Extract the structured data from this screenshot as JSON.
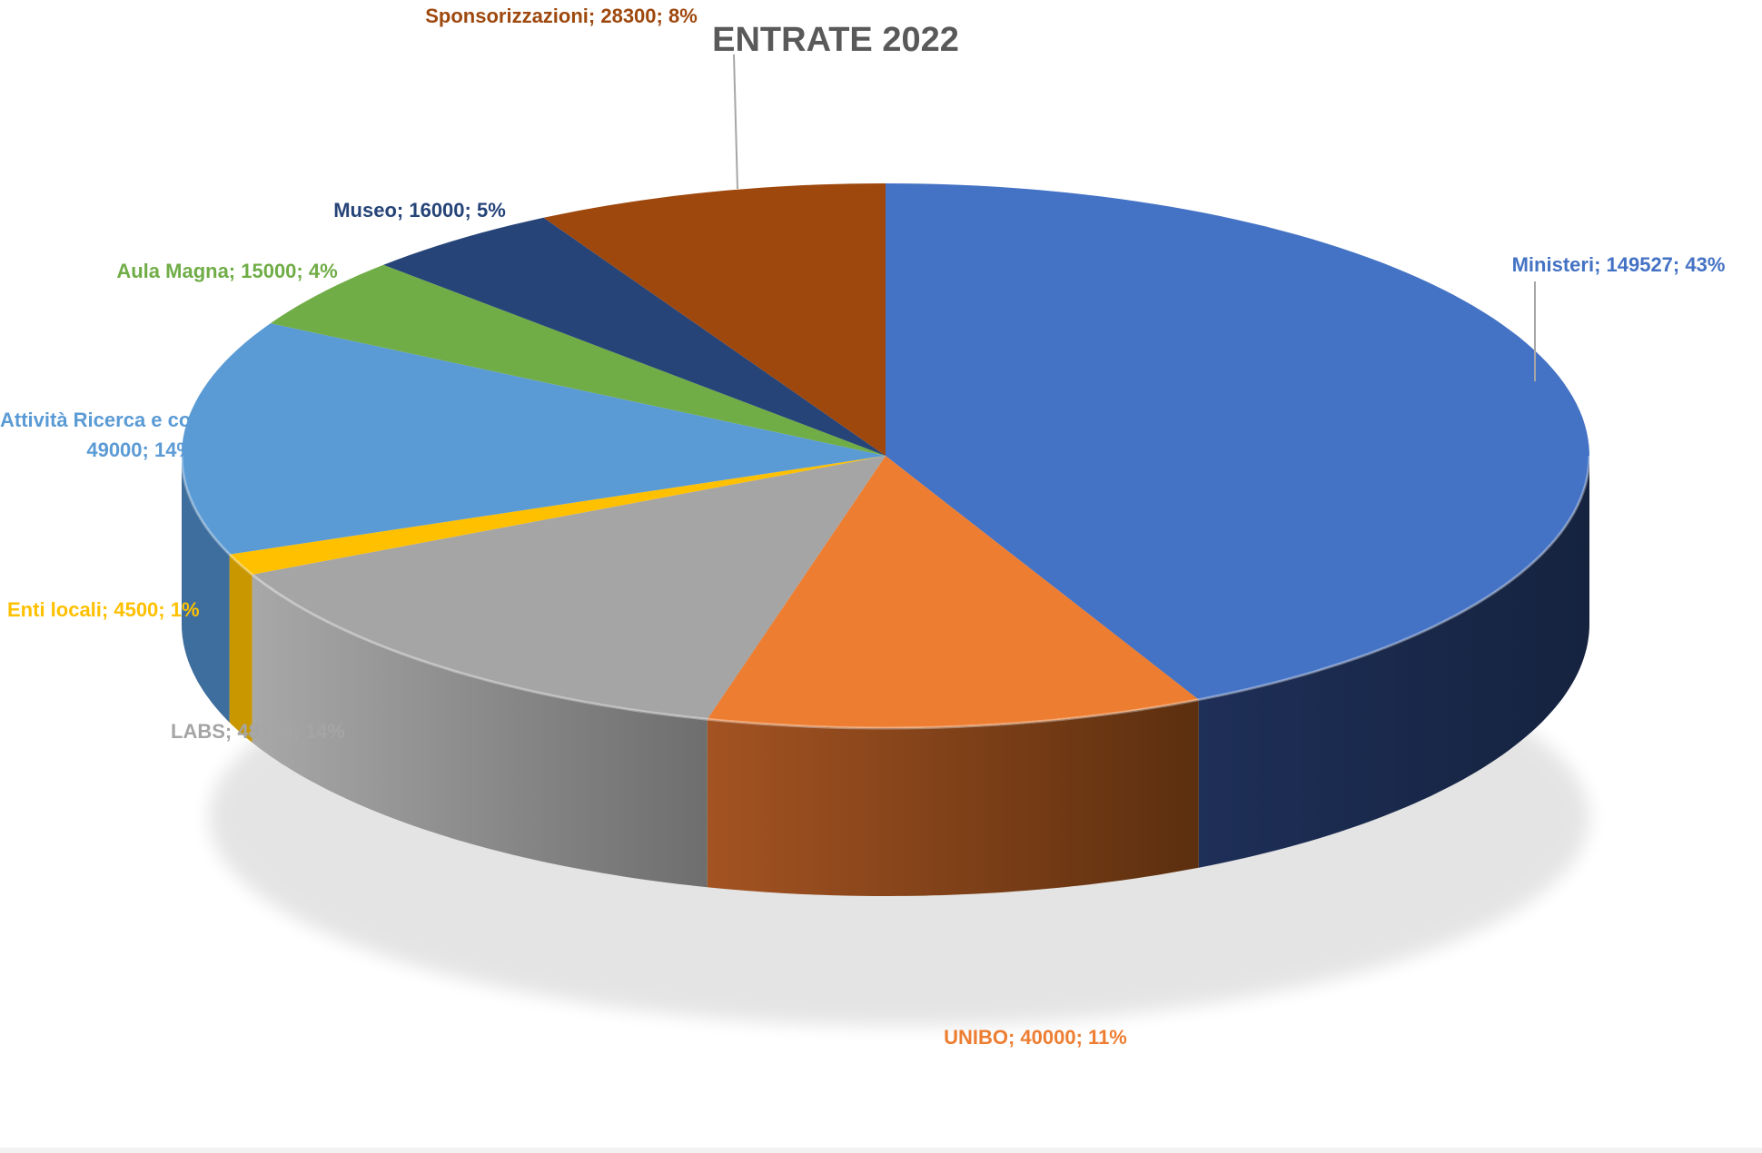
{
  "chart_data": {
    "type": "pie",
    "title": "ENTRATE 2022",
    "style": "3d-exploded-perspective",
    "slices": [
      {
        "name": "Ministeri",
        "value": 149527,
        "percent": "43%",
        "label": "Ministeri; 149527; 43%",
        "color": "#4472C4",
        "side_color": "#1B2A4E"
      },
      {
        "name": "UNIBO",
        "value": 40000,
        "percent": "11%",
        "label": "UNIBO; 40000; 11%",
        "color": "#ED7D31",
        "side_color": "#8B4513"
      },
      {
        "name": "LABS",
        "value": 48160,
        "percent": "14%",
        "label": "LABS; 48160; 14%",
        "color": "#A5A5A5",
        "side_color": "#7F7F7F"
      },
      {
        "name": "Enti locali",
        "value": 4500,
        "percent": "1%",
        "label": "Enti locali; 4500; 1%",
        "color": "#FFC000",
        "side_color": "#C99700"
      },
      {
        "name": "Attività Ricerca e con",
        "value": 49000,
        "percent": "14%",
        "label_lines": [
          "Attività Ricerca e con",
          "49000; 14%"
        ],
        "color": "#5B9BD5",
        "side_color": "#3E6E9E"
      },
      {
        "name": "Aula Magna",
        "value": 15000,
        "percent": "4%",
        "label": "Aula Magna; 15000; 4%",
        "color": "#70AD47",
        "side_color": "#4E7A32"
      },
      {
        "name": "Museo",
        "value": 16000,
        "percent": "5%",
        "label": "Museo; 16000; 5%",
        "color": "#264478",
        "side_color": "#172B4D"
      },
      {
        "name": "Sponsorizzazioni",
        "value": 28300,
        "percent": "8%",
        "label": "Sponsorizzazioni; 28300; 8%",
        "color": "#9E480E",
        "side_color": "#6B300A"
      }
    ],
    "label_colors": {
      "Ministeri": "#4472C4",
      "UNIBO": "#ED7D31",
      "LABS": "#A5A5A5",
      "Enti locali": "#FFC000",
      "Attività Ricerca e con": "#5B9BD5",
      "Aula Magna": "#70AD47",
      "Museo": "#264478",
      "Sponsorizzazioni": "#9E480E"
    }
  }
}
